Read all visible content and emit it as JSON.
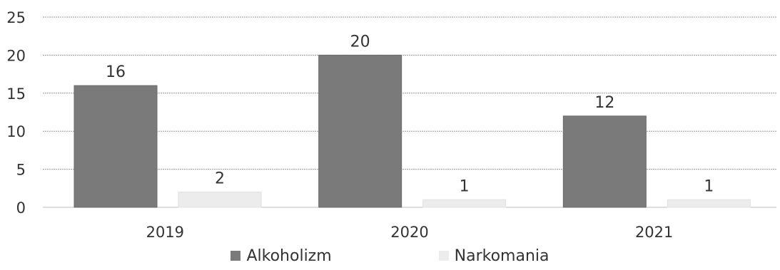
{
  "chart_data": {
    "type": "bar",
    "categories": [
      "2019",
      "2020",
      "2021"
    ],
    "series": [
      {
        "name": "Alkoholizm",
        "values": [
          16,
          20,
          12
        ],
        "color": "#7a7a7a"
      },
      {
        "name": "Narkomania",
        "values": [
          2,
          1,
          1
        ],
        "color": "#ececec"
      }
    ],
    "ylim": [
      0,
      25
    ],
    "yticks": [
      "0",
      "5",
      "10",
      "15",
      "20",
      "25"
    ],
    "grid": true,
    "legend_position": "bottom",
    "title": "",
    "xlabel": "",
    "ylabel": ""
  }
}
